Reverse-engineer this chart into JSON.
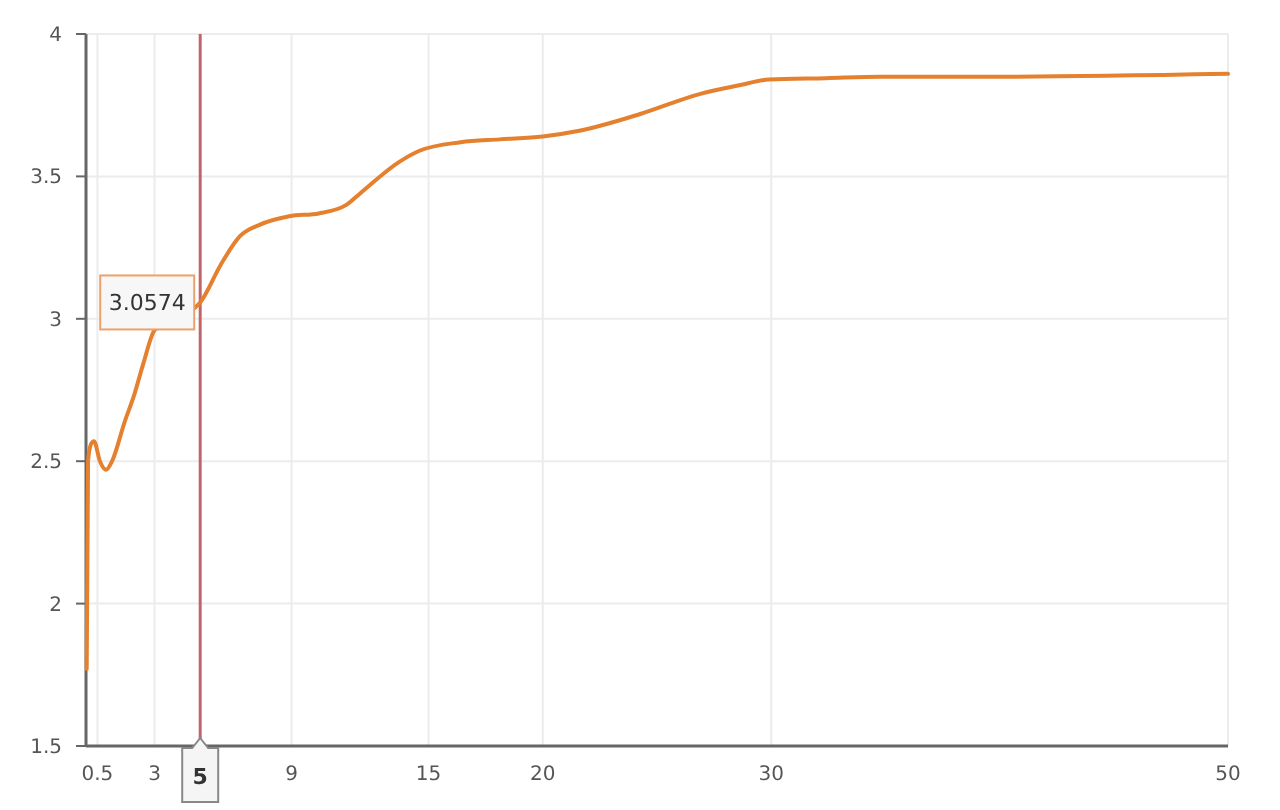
{
  "chart_data": {
    "type": "line",
    "x": [
      0.03,
      0.09,
      0.22,
      0.35,
      0.61,
      0.88,
      1.14,
      1.7,
      2.1,
      2.5,
      3,
      5,
      5.9,
      6.74,
      7.6,
      8.9,
      10.2,
      11.4,
      12,
      13.7,
      14.6,
      16.4,
      18.1,
      20,
      21.6,
      24.3,
      26.9,
      28.6,
      29.9,
      32.4,
      34.8,
      40,
      50
    ],
    "series": [
      {
        "color": "#e5802f",
        "values": [
          1.77,
          2.5,
          2.56,
          2.57,
          2.5,
          2.47,
          2.5,
          2.64,
          2.73,
          2.84,
          2.96,
          3.0574,
          3.19,
          3.29,
          3.33,
          3.36,
          3.37,
          3.4,
          3.44,
          3.55,
          3.59,
          3.62,
          3.63,
          3.64,
          3.66,
          3.72,
          3.79,
          3.82,
          3.84,
          3.845,
          3.85,
          3.85,
          3.86
        ]
      }
    ],
    "xlim": [
      0,
      50
    ],
    "xticks": [
      0.5,
      3,
      9,
      15,
      20,
      30,
      50
    ],
    "ylim": [
      1.5,
      4
    ],
    "yticks": [
      1.5,
      2,
      2.5,
      3,
      3.5,
      4
    ],
    "grid": true,
    "ref_lines": [
      {
        "axis": "x",
        "value": 5,
        "label": "5",
        "color": "#c0666a"
      }
    ],
    "annotations": [
      {
        "text": "3.0574",
        "x": 5,
        "y": 3.0574
      }
    ]
  }
}
